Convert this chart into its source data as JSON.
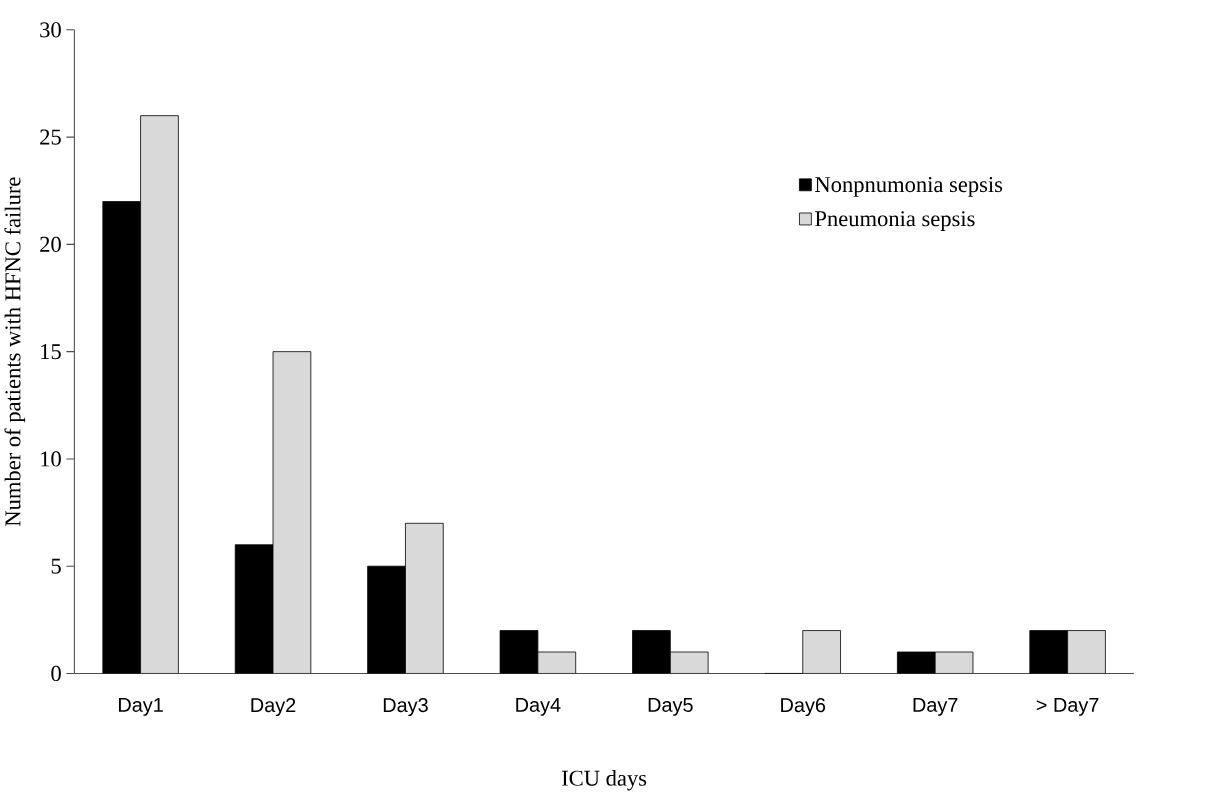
{
  "chart_data": {
    "type": "bar",
    "xlabel": "ICU days",
    "ylabel": "Number of patients with HFNC failure",
    "categories": [
      "Day1",
      "Day2",
      "Day3",
      "Day4",
      "Day5",
      "Day6",
      "Day7",
      "> Day7"
    ],
    "series": [
      {
        "name": "Nonpnumonia sepsis",
        "color": "#000000",
        "values": [
          22,
          6,
          5,
          2,
          2,
          0,
          1,
          2
        ]
      },
      {
        "name": "Pneumonia sepsis",
        "color": "#d9d9d9",
        "values": [
          26,
          15,
          7,
          1,
          1,
          2,
          1,
          2
        ]
      }
    ],
    "ylim": [
      0,
      30
    ],
    "yticks": [
      0,
      5,
      10,
      15,
      20,
      25,
      30
    ],
    "legend": "right",
    "grid": false
  }
}
